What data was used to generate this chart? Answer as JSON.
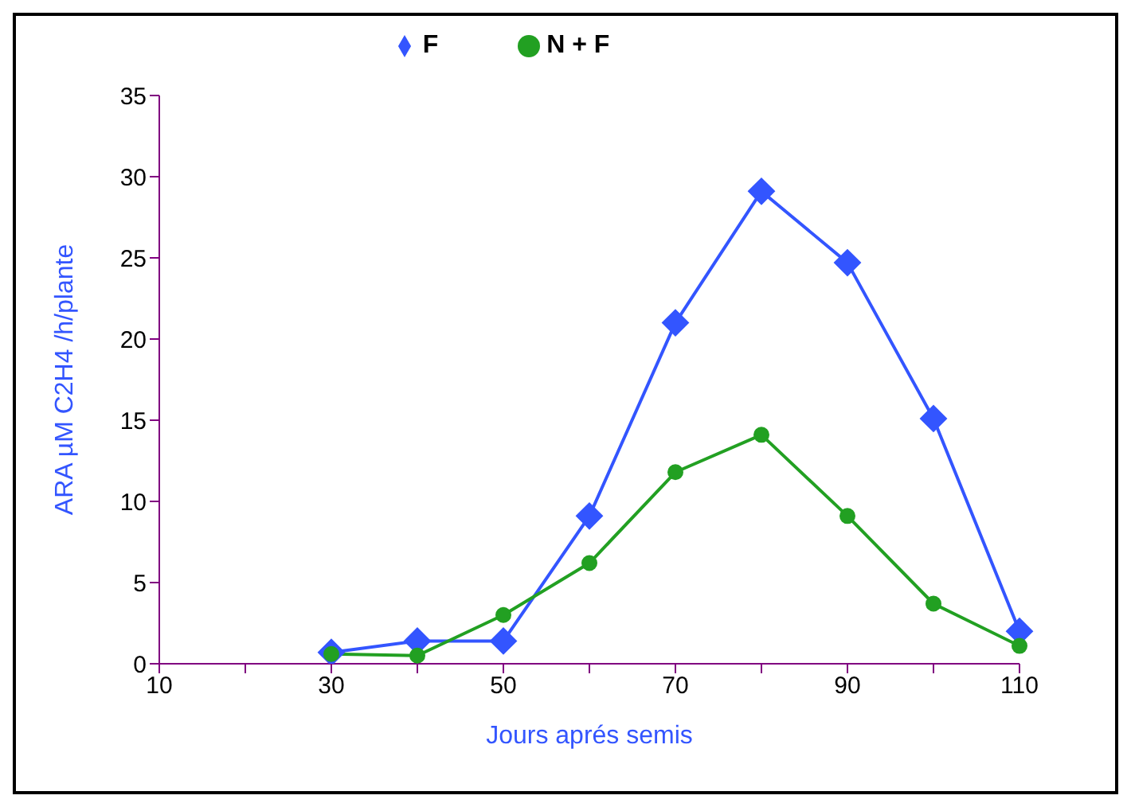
{
  "chart_data": {
    "type": "line",
    "xlabel": "Jours aprés semis",
    "ylabel": "ARA µM C2H4 /h/plante",
    "categories": [
      "10",
      null,
      "30",
      null,
      "50",
      null,
      "70",
      null,
      "90",
      null,
      "110"
    ],
    "series": [
      {
        "name": "N + F",
        "color": "#22a022",
        "marker": "circle",
        "values": [
          null,
          null,
          0.6,
          0.5,
          3.0,
          6.2,
          11.8,
          14.1,
          9.1,
          3.7,
          1.1
        ]
      },
      {
        "name": "F",
        "color": "#3355ff",
        "marker": "diamond",
        "values": [
          null,
          null,
          0.7,
          1.4,
          1.4,
          9.1,
          21.0,
          29.1,
          24.7,
          15.1,
          2.0
        ]
      }
    ],
    "ylim": [
      0,
      35
    ],
    "yticks": [
      0,
      5,
      10,
      15,
      20,
      25,
      30,
      35
    ],
    "grid": false,
    "legend": "top",
    "line_style": "solid"
  }
}
